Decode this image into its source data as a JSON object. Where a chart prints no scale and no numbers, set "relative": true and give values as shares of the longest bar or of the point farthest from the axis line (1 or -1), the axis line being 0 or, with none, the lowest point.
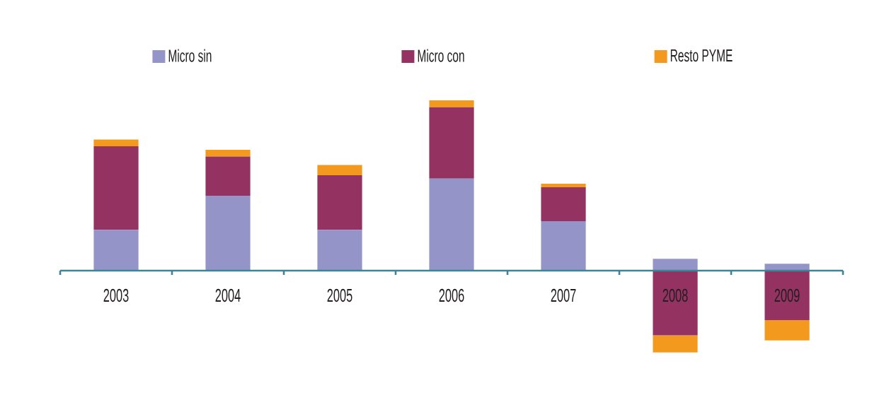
{
  "chart_data": {
    "type": "bar",
    "stacked": true,
    "relative": true,
    "legend": "top",
    "categories": [
      "2003",
      "2004",
      "2005",
      "2006",
      "2007",
      "2008",
      "2009"
    ],
    "series": [
      {
        "name": "Micro sin",
        "color": "#9494c8",
        "values": [
          0.24,
          0.44,
          0.24,
          0.54,
          0.29,
          0.07,
          0.04
        ]
      },
      {
        "name": "Micro con",
        "color": "#943262",
        "values": [
          0.49,
          0.23,
          0.32,
          0.42,
          0.2,
          -0.38,
          -0.29
        ]
      },
      {
        "name": "Resto PYME",
        "color": "#f39a1e",
        "values": [
          0.04,
          0.04,
          0.06,
          0.04,
          0.02,
          -0.1,
          -0.12
        ]
      }
    ]
  }
}
